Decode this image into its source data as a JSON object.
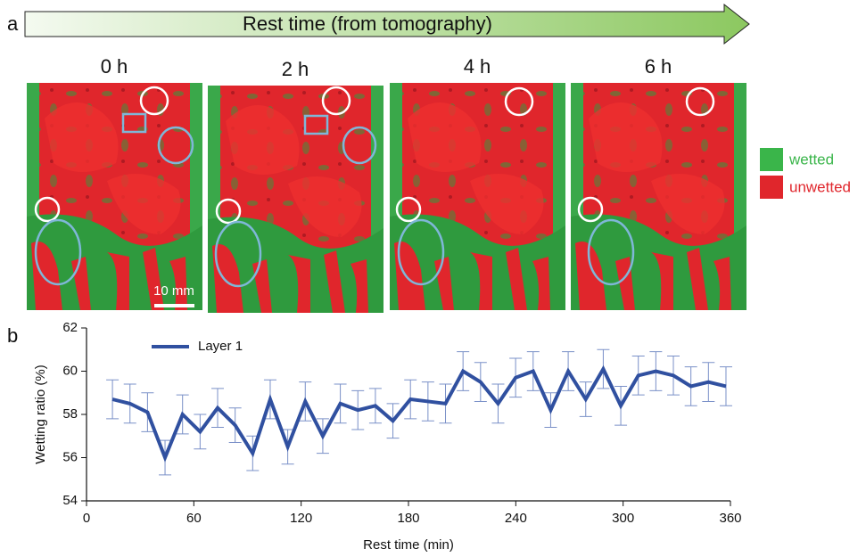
{
  "panel_a": {
    "label": "a",
    "arrow_text": "Rest time (from tomography)",
    "times": [
      "0 h",
      "2 h",
      "4 h",
      "6 h"
    ],
    "scale_bar": "10 mm",
    "legend": [
      "wetted",
      "unwetted"
    ]
  },
  "panel_b": {
    "label": "b"
  },
  "chart_data": {
    "type": "line",
    "ylabel": "Wetting ratio (%)",
    "xlabel": "Rest time (min)",
    "x": [
      14.5,
      24.3,
      34.1,
      43.9,
      53.7,
      63.5,
      73.3,
      83.1,
      92.9,
      102.7,
      112.5,
      122.3,
      132.1,
      141.9,
      151.7,
      161.5,
      171.3,
      181.1,
      190.9,
      200.7,
      210.5,
      220.3,
      230.1,
      239.9,
      249.7,
      259.5,
      269.3,
      279.1,
      288.9,
      298.7,
      308.5,
      318.3,
      328.1,
      337.9,
      347.7,
      357.5
    ],
    "series": [
      {
        "name": "Layer 1",
        "color": "#3050a0",
        "values": [
          58.7,
          58.5,
          58.1,
          56.0,
          58.0,
          57.2,
          58.3,
          57.5,
          56.2,
          58.7,
          56.5,
          58.6,
          57.0,
          58.5,
          58.2,
          58.4,
          57.7,
          58.7,
          58.6,
          58.5,
          60.0,
          59.5,
          58.5,
          59.7,
          60.0,
          58.2,
          60.0,
          58.7,
          60.1,
          58.4,
          59.8,
          60.0,
          59.8,
          59.3,
          59.5,
          59.3
        ],
        "errors": [
          0.9,
          0.9,
          0.9,
          0.8,
          0.9,
          0.8,
          0.9,
          0.8,
          0.8,
          0.9,
          0.8,
          0.9,
          0.8,
          0.9,
          0.9,
          0.8,
          0.8,
          0.9,
          0.9,
          0.9,
          0.9,
          0.9,
          0.9,
          0.9,
          0.9,
          0.8,
          0.9,
          0.8,
          0.9,
          0.9,
          0.9,
          0.9,
          0.9,
          0.9,
          0.9,
          0.9
        ]
      }
    ],
    "xlim": [
      0,
      360
    ],
    "xticks": [
      0,
      60,
      120,
      180,
      240,
      300,
      360
    ],
    "ylim": [
      54,
      62
    ],
    "yticks": [
      54,
      56,
      58,
      60,
      62
    ],
    "errorbar_color": "#7a90c8"
  }
}
